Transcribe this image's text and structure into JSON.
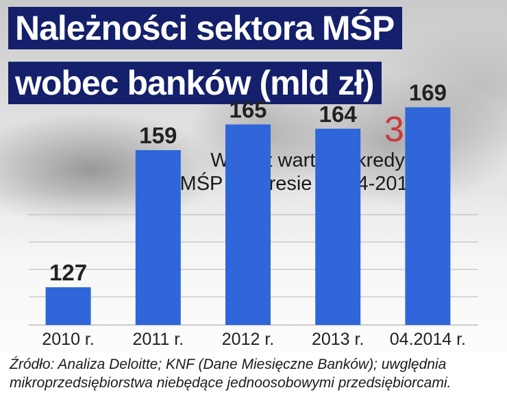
{
  "title_lines": [
    "Należności sektora MŚP",
    "wobec banków (mld zł)"
  ],
  "highlight": {
    "value": "3%",
    "lines": [
      "Wzrost wartości kredytów",
      "dla MŚP w okresie 01-04-2014 r."
    ]
  },
  "source": "Źródło: Analiza Deloitte; KNF (Dane Miesięczne Banków); uwględnia mikroprzedsiębiorstwa niebędące jednoosobowymi przedsiębiorcami.",
  "colors": {
    "bar": "#2f66d9",
    "title_bg": "#14206b",
    "highlight": "#c83a3a"
  },
  "chart_data": {
    "type": "bar",
    "categories": [
      "2010 r.",
      "2011 r.",
      "2012 r.",
      "2013 r.",
      "04.2014 r."
    ],
    "values": [
      127,
      159,
      165,
      164,
      169
    ],
    "data_labels": [
      "127",
      "159",
      "165",
      "164",
      "169"
    ],
    "ylim": [
      100,
      175
    ],
    "grid": true,
    "legend": "none"
  }
}
